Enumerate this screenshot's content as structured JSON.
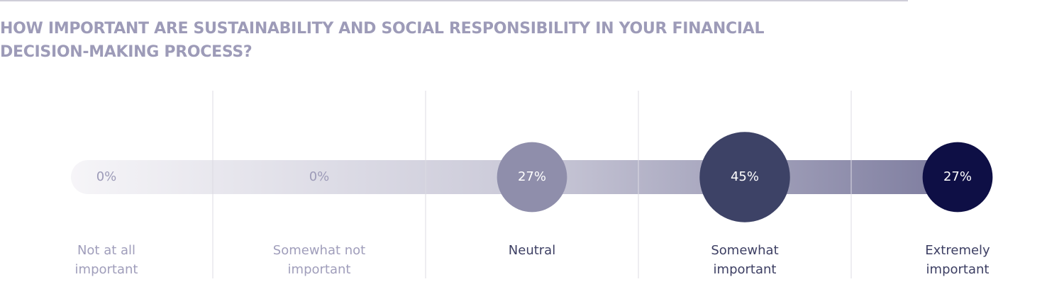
{
  "chart_data": {
    "type": "bubble",
    "title": "HOW IMPORTANT ARE SUSTAINABILITY AND SOCIAL RESPONSIBILITY IN YOUR FINANCIAL\nDECISION-MAKING PROCESS?",
    "categories": [
      "Not at all\nimportant",
      "Somewhat not\nimportant",
      "Neutral",
      "Somewhat\nimportant",
      "Extremely\nimportant"
    ],
    "values": [
      0,
      0,
      27,
      45,
      27
    ],
    "value_labels": [
      "0%",
      "0%",
      "27%",
      "45%",
      "27%"
    ],
    "colors": [
      "#e9e8ef",
      "#dddce6",
      "#8f8eab",
      "#3d4266",
      "#0e0f45"
    ]
  }
}
